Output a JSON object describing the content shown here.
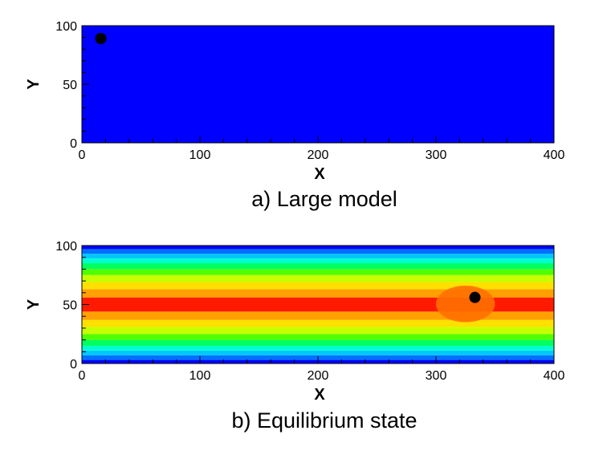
{
  "chart_data": [
    {
      "type": "heatmap",
      "caption": "a) Large model",
      "xlabel": "X",
      "ylabel": "Y",
      "xlim": [
        0,
        400
      ],
      "ylim": [
        0,
        100
      ],
      "xticks": [
        0,
        100,
        200,
        300,
        400
      ],
      "yticks": [
        0,
        50,
        100
      ],
      "field": "uniform",
      "fill_color": "#0000ff",
      "points": [
        {
          "x": 16,
          "y": 89
        }
      ]
    },
    {
      "type": "heatmap",
      "caption": "b) Equilibrium state",
      "xlabel": "X",
      "ylabel": "Y",
      "xlim": [
        0,
        400
      ],
      "ylim": [
        0,
        100
      ],
      "xticks": [
        0,
        100,
        200,
        300,
        400
      ],
      "yticks": [
        0,
        50,
        100
      ],
      "field": "symmetric bands about y = 50, highest at centre",
      "bands": [
        {
          "y_from": 0,
          "y_to": 3,
          "color": "#0000ff"
        },
        {
          "y_from": 3,
          "y_to": 7,
          "color": "#0070ff"
        },
        {
          "y_from": 7,
          "y_to": 11,
          "color": "#00c8ff"
        },
        {
          "y_from": 11,
          "y_to": 15,
          "color": "#00ffd0"
        },
        {
          "y_from": 15,
          "y_to": 20,
          "color": "#00ff60"
        },
        {
          "y_from": 20,
          "y_to": 25,
          "color": "#50ff00"
        },
        {
          "y_from": 25,
          "y_to": 31,
          "color": "#c8ff00"
        },
        {
          "y_from": 31,
          "y_to": 37,
          "color": "#ffe000"
        },
        {
          "y_from": 37,
          "y_to": 44,
          "color": "#ffa000"
        },
        {
          "y_from": 44,
          "y_to": 56,
          "color": "#ff1a00"
        },
        {
          "y_from": 56,
          "y_to": 63,
          "color": "#ffa000"
        },
        {
          "y_from": 63,
          "y_to": 69,
          "color": "#ffe000"
        },
        {
          "y_from": 69,
          "y_to": 75,
          "color": "#c8ff00"
        },
        {
          "y_from": 75,
          "y_to": 80,
          "color": "#50ff00"
        },
        {
          "y_from": 80,
          "y_to": 85,
          "color": "#00ff60"
        },
        {
          "y_from": 85,
          "y_to": 89,
          "color": "#00ffd0"
        },
        {
          "y_from": 89,
          "y_to": 93,
          "color": "#00c8ff"
        },
        {
          "y_from": 93,
          "y_to": 97,
          "color": "#0070ff"
        },
        {
          "y_from": 97,
          "y_to": 100,
          "color": "#0000ff"
        }
      ],
      "disturbance": {
        "x_from": 300,
        "x_to": 350,
        "y_from": 35,
        "y_to": 66,
        "color": "#ff7000"
      },
      "points": [
        {
          "x": 333,
          "y": 56
        }
      ]
    }
  ]
}
